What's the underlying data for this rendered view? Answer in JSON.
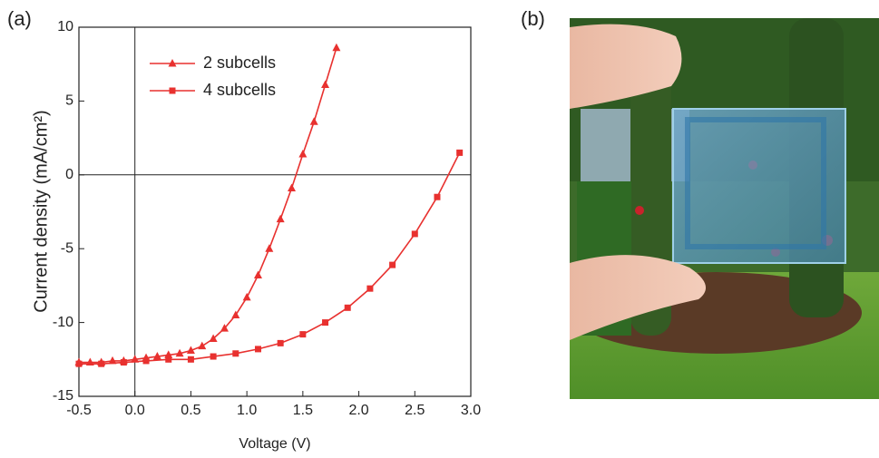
{
  "chart_data": {
    "type": "line",
    "panel_labels": [
      "(a)",
      "(b)"
    ],
    "xlabel": "Voltage (V)",
    "ylabel": "Current density (mA/cm²)",
    "xlim": [
      -0.5,
      3.0
    ],
    "ylim": [
      -15,
      10
    ],
    "xticks": [
      -0.5,
      {
        "value": 0,
        "label": "0.0"
      },
      0.5,
      {
        "value": 1,
        "label": "1.0"
      },
      1.5,
      {
        "value": 2,
        "label": "2.0"
      },
      2.5,
      {
        "value": 3,
        "label": "3.0"
      }
    ],
    "yticks": [
      -15,
      -10,
      -5,
      0,
      5,
      10
    ],
    "legend": "upper left",
    "series": [
      {
        "name": "2 subcells",
        "color": "#e8312f",
        "marker": "triangle",
        "x": [
          -0.5,
          -0.4,
          -0.3,
          -0.2,
          -0.1,
          0,
          0.1,
          0.2,
          0.3,
          0.4,
          0.5,
          0.6,
          0.7,
          0.8,
          0.9,
          1.0,
          1.1,
          1.2,
          1.3,
          1.4,
          1.5,
          1.6,
          1.7,
          1.8
        ],
        "values": [
          -12.7,
          -12.7,
          -12.7,
          -12.6,
          -12.6,
          -12.5,
          -12.4,
          -12.3,
          -12.2,
          -12.1,
          -11.9,
          -11.6,
          -11.1,
          -10.4,
          -9.5,
          -8.3,
          -6.8,
          -5.0,
          -3.0,
          -0.9,
          1.4,
          3.6,
          6.1,
          8.6
        ]
      },
      {
        "name": "4 subcells",
        "color": "#e8312f",
        "marker": "square",
        "x": [
          -0.5,
          -0.3,
          -0.1,
          0.1,
          0.3,
          0.5,
          0.7,
          0.9,
          1.1,
          1.3,
          1.5,
          1.7,
          1.9,
          2.1,
          2.3,
          2.5,
          2.7,
          2.9
        ],
        "values": [
          -12.8,
          -12.8,
          -12.7,
          -12.6,
          -12.5,
          -12.5,
          -12.3,
          -12.1,
          -11.8,
          -11.4,
          -10.8,
          -10.0,
          -9.0,
          -7.7,
          -6.1,
          -4.0,
          -1.5,
          1.5
        ]
      }
    ]
  }
}
